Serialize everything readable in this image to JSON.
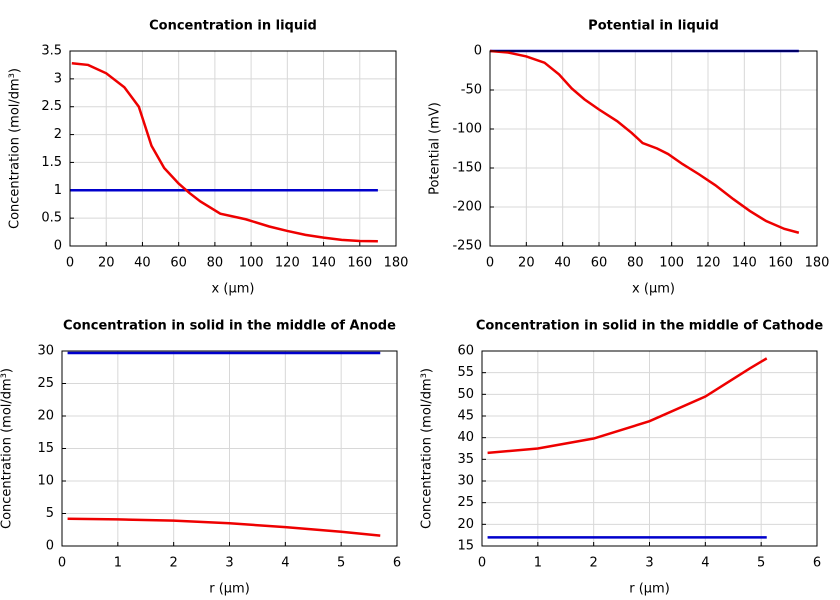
{
  "chart_data": [
    {
      "type": "line",
      "title": "Concentration in liquid",
      "xlabel": "x (µm)",
      "ylabel": "Concentration (mol/dm³)",
      "xlim": [
        0,
        180
      ],
      "ylim": [
        0,
        3.5
      ],
      "xticks": [
        0,
        20,
        40,
        60,
        80,
        100,
        120,
        140,
        160,
        180
      ],
      "yticks": [
        0,
        0.5,
        1,
        1.5,
        2,
        2.5,
        3,
        3.5
      ],
      "grid": true,
      "series": [
        {
          "color": "#0000cc",
          "x": [
            0,
            170
          ],
          "values": [
            1,
            1
          ]
        },
        {
          "color": "#ee0000",
          "x": [
            1,
            10,
            20,
            30,
            38,
            45,
            52,
            60,
            66,
            72,
            83,
            97,
            110,
            120,
            130,
            140,
            150,
            160,
            170
          ],
          "values": [
            3.28,
            3.25,
            3.1,
            2.85,
            2.5,
            1.8,
            1.4,
            1.12,
            0.95,
            0.8,
            0.58,
            0.48,
            0.35,
            0.27,
            0.2,
            0.15,
            0.11,
            0.09,
            0.085
          ]
        }
      ]
    },
    {
      "type": "line",
      "title": "Potential in liquid",
      "xlabel": "x (µm)",
      "ylabel": "Potential (mV)",
      "xlim": [
        0,
        180
      ],
      "ylim": [
        -250,
        0
      ],
      "xticks": [
        0,
        20,
        40,
        60,
        80,
        100,
        120,
        140,
        160,
        180
      ],
      "yticks": [
        0,
        -50,
        -100,
        -150,
        -200,
        -250
      ],
      "grid": true,
      "series": [
        {
          "color": "#0000cc",
          "x": [
            0,
            170
          ],
          "values": [
            0,
            0
          ]
        },
        {
          "color": "#ee0000",
          "x": [
            0,
            10,
            20,
            30,
            38,
            45,
            52,
            60,
            70,
            78,
            84,
            92,
            98,
            106,
            115,
            124,
            134,
            143,
            152,
            162,
            170
          ],
          "values": [
            0,
            -2,
            -7,
            -15,
            -30,
            -48,
            -62,
            -75,
            -90,
            -105,
            -118,
            -125,
            -132,
            -145,
            -158,
            -172,
            -190,
            -205,
            -218,
            -228,
            -233
          ]
        }
      ]
    },
    {
      "type": "line",
      "title": "Concentration in solid in the middle of Anode",
      "xlabel": "r (µm)",
      "ylabel": "Concentration (mol/dm³)",
      "xlim": [
        0,
        6
      ],
      "ylim": [
        0,
        30
      ],
      "xticks": [
        0,
        1,
        2,
        3,
        4,
        5,
        6
      ],
      "yticks": [
        0,
        5,
        10,
        15,
        20,
        25,
        30
      ],
      "grid": true,
      "series": [
        {
          "color": "#0000cc",
          "x": [
            0.1,
            5.7
          ],
          "values": [
            29.7,
            29.7
          ]
        },
        {
          "color": "#ee0000",
          "x": [
            0.1,
            1,
            2,
            3,
            4,
            5,
            5.7
          ],
          "values": [
            4.2,
            4.1,
            3.9,
            3.5,
            2.9,
            2.2,
            1.6
          ]
        }
      ]
    },
    {
      "type": "line",
      "title": "Concentration in solid in the middle of Cathode",
      "xlabel": "r (µm)",
      "ylabel": "Concentration (mol/dm³)",
      "xlim": [
        0,
        6
      ],
      "ylim": [
        15,
        60
      ],
      "xticks": [
        0,
        1,
        2,
        3,
        4,
        5,
        6
      ],
      "yticks": [
        15,
        20,
        25,
        30,
        35,
        40,
        45,
        50,
        55,
        60
      ],
      "grid": true,
      "series": [
        {
          "color": "#0000cc",
          "x": [
            0.1,
            5.1
          ],
          "values": [
            17,
            17
          ]
        },
        {
          "color": "#ee0000",
          "x": [
            0.1,
            1,
            2,
            3,
            4,
            4.8,
            5.1
          ],
          "values": [
            36.5,
            37.5,
            39.8,
            43.8,
            49.5,
            56,
            58.3
          ]
        }
      ]
    }
  ]
}
